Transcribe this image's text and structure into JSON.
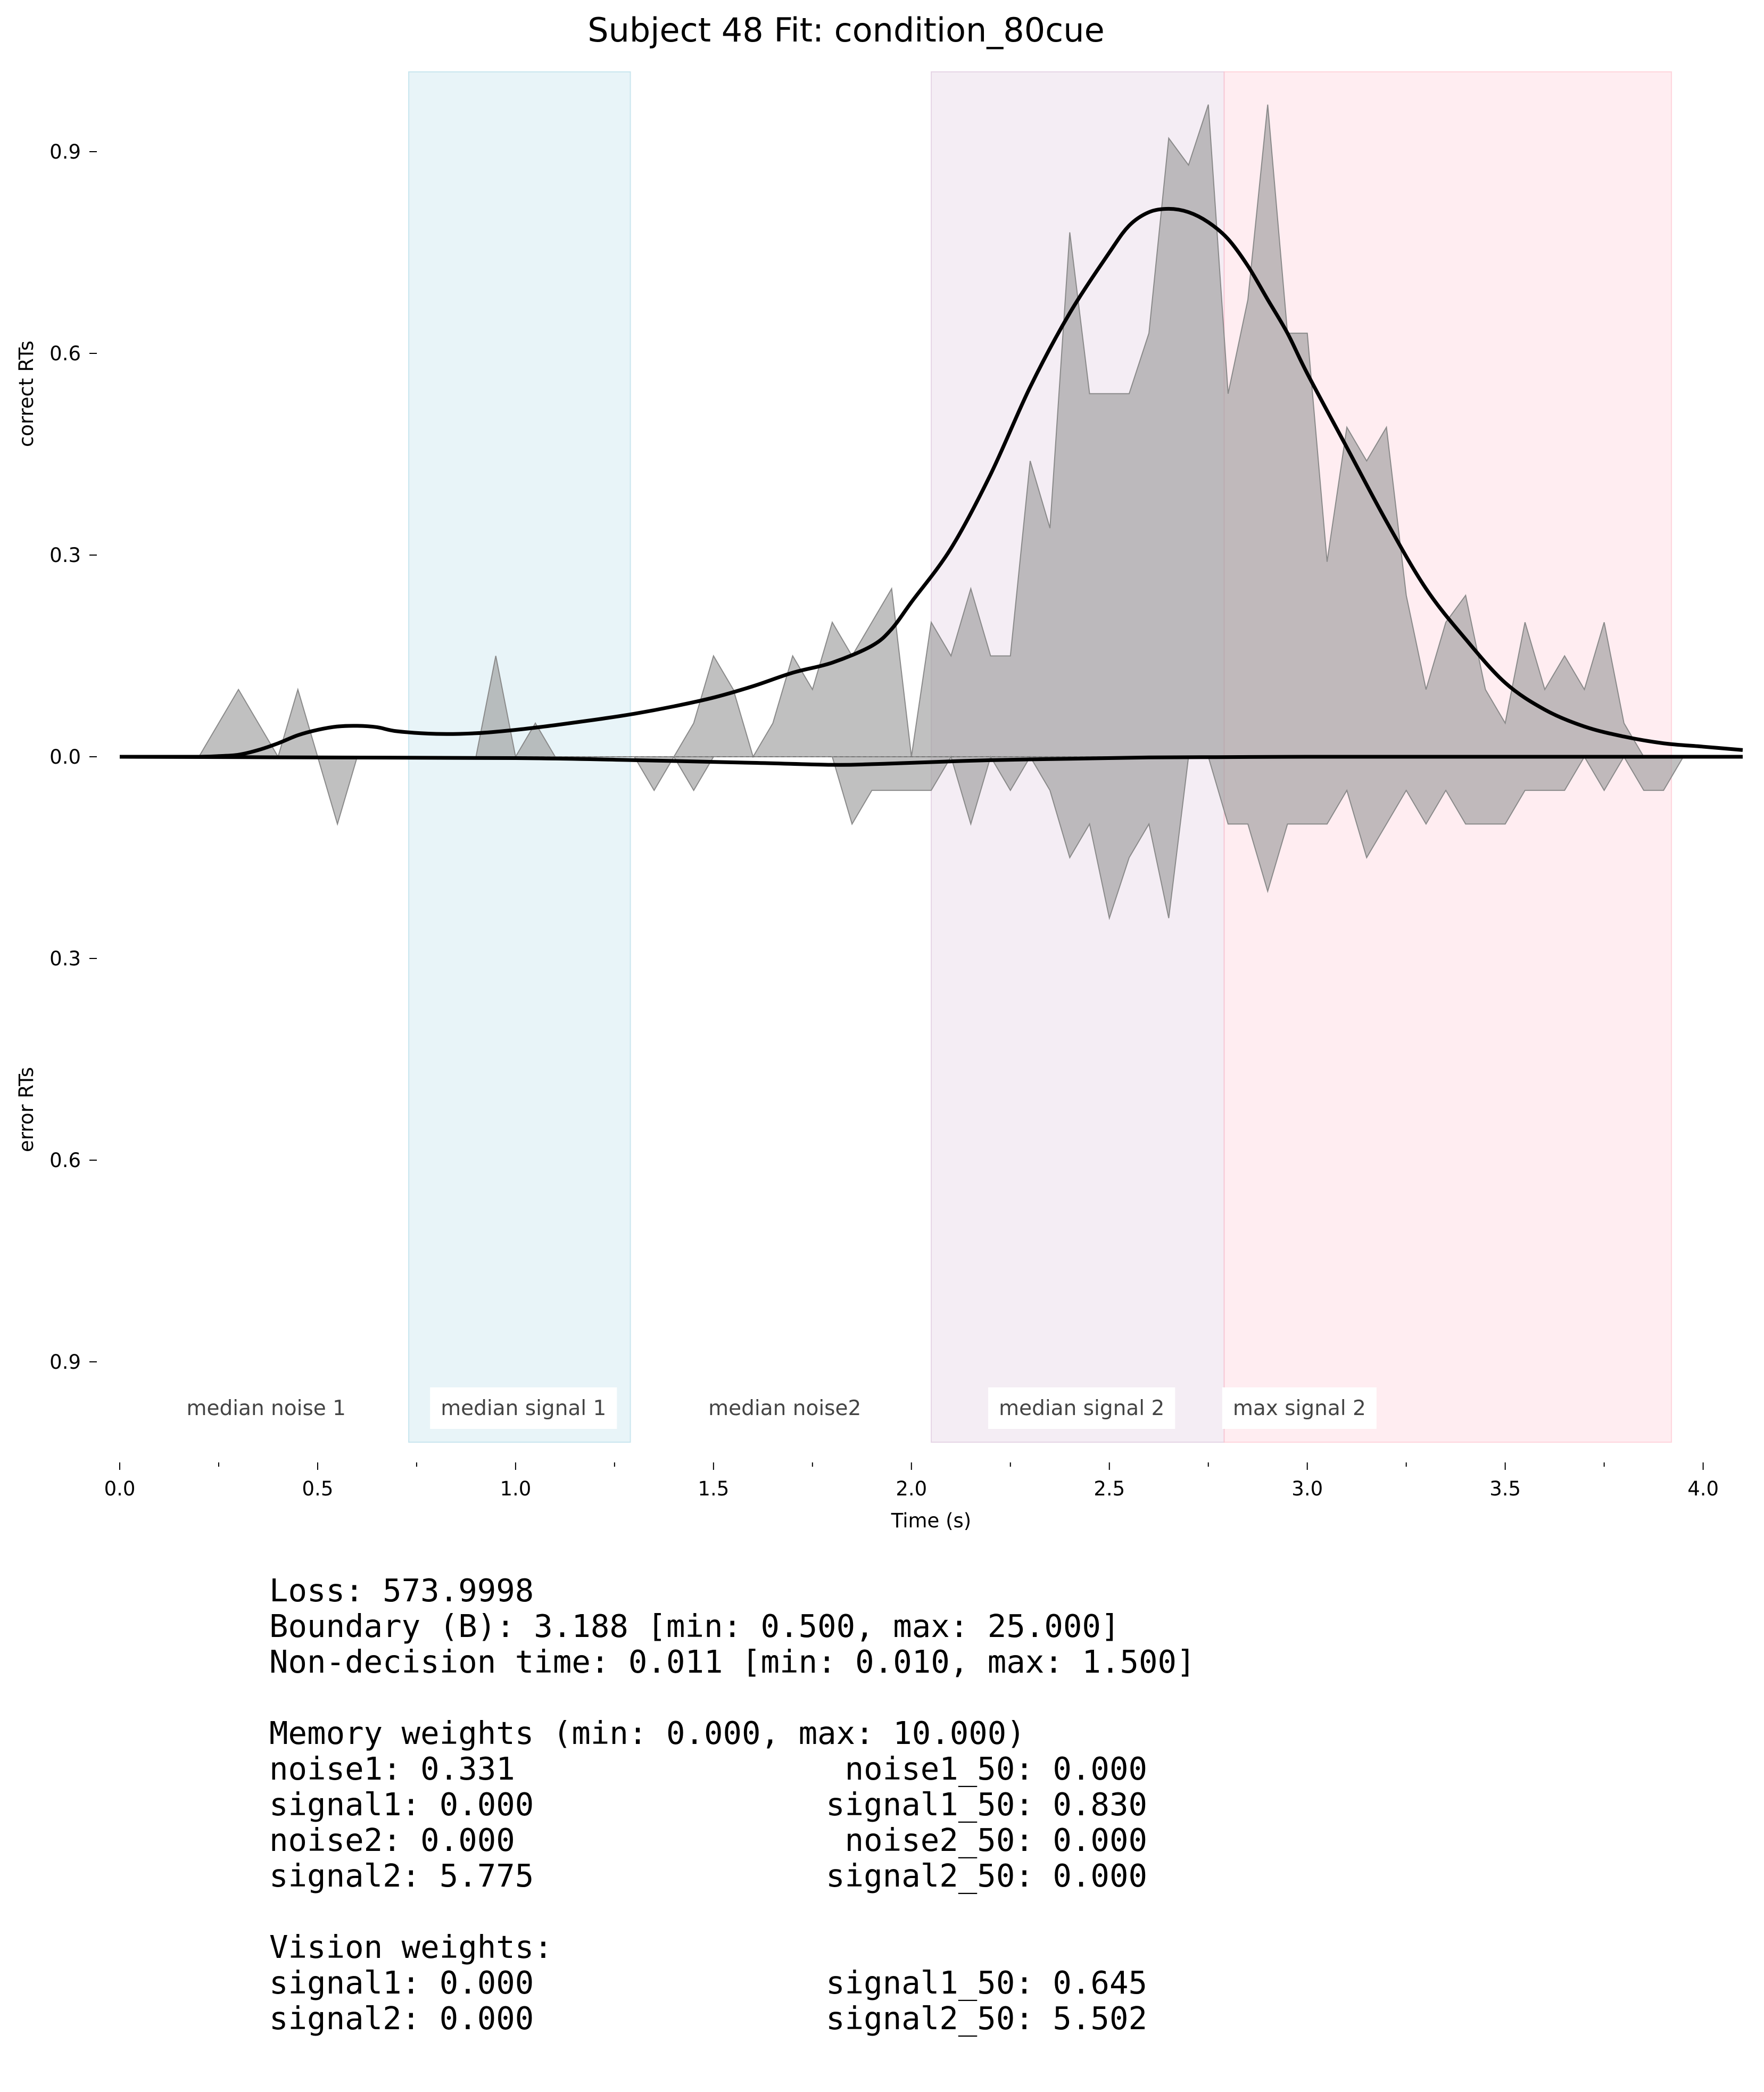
{
  "chart_data": {
    "type": "area",
    "title": "Subject 48 Fit: condition_80cue",
    "xlabel": "Time (s)",
    "ylabel_top": "correct RTs",
    "ylabel_bottom": "error RTs",
    "xlim": [
      0.0,
      4.1
    ],
    "ylim": [
      -1.0,
      1.0
    ],
    "x_ticks": [
      0.0,
      0.5,
      1.0,
      1.5,
      2.0,
      2.5,
      3.0,
      3.5,
      4.0
    ],
    "x_tick_labels": [
      "0.0",
      "0.5",
      "1.0",
      "1.5",
      "2.0",
      "2.5",
      "3.0",
      "3.5",
      "4.0"
    ],
    "y_ticks": [
      0.9,
      0.6,
      0.3,
      0.0,
      -0.3,
      -0.6,
      -0.9
    ],
    "y_tick_labels": [
      "0.9",
      "0.6",
      "0.3",
      "0.0",
      "0.3",
      "0.6",
      "0.9"
    ],
    "grid": false,
    "regions": [
      {
        "label": "median noise 1",
        "x0": null,
        "x1": null,
        "color": "",
        "boxed": false
      },
      {
        "label": "median signal 1",
        "x0": 0.73,
        "x1": 1.29,
        "color": "#add8e6",
        "boxed": true
      },
      {
        "label": "median noise2",
        "x0": null,
        "x1": null,
        "color": "",
        "boxed": false
      },
      {
        "label": "median signal 2",
        "x0": 2.05,
        "x1": 2.79,
        "color": "#d8bfd8",
        "boxed": true
      },
      {
        "label": "max signal 2",
        "x0": 2.79,
        "x1": 3.92,
        "color": "#ffc0cb",
        "boxed": true
      }
    ],
    "region_label_x": [
      0.37,
      1.02,
      1.68,
      2.43,
      2.98
    ],
    "histogram_correct": {
      "x": [
        0.0,
        0.05,
        0.1,
        0.15,
        0.2,
        0.25,
        0.3,
        0.35,
        0.4,
        0.45,
        0.5,
        0.55,
        0.6,
        0.65,
        0.7,
        0.75,
        0.8,
        0.85,
        0.9,
        0.95,
        1.0,
        1.05,
        1.1,
        1.15,
        1.2,
        1.25,
        1.3,
        1.35,
        1.4,
        1.45,
        1.5,
        1.55,
        1.6,
        1.65,
        1.7,
        1.75,
        1.8,
        1.85,
        1.9,
        1.95,
        2.0,
        2.05,
        2.1,
        2.15,
        2.2,
        2.25,
        2.3,
        2.35,
        2.4,
        2.45,
        2.5,
        2.55,
        2.6,
        2.65,
        2.7,
        2.75,
        2.8,
        2.85,
        2.9,
        2.95,
        3.0,
        3.05,
        3.1,
        3.15,
        3.2,
        3.25,
        3.3,
        3.35,
        3.4,
        3.45,
        3.5,
        3.55,
        3.6,
        3.65,
        3.7,
        3.75,
        3.8,
        3.85,
        3.9,
        3.95
      ],
      "y": [
        0.0,
        0.0,
        0.0,
        0.0,
        0.0,
        0.05,
        0.1,
        0.05,
        0.0,
        0.1,
        0.0,
        0.0,
        0.0,
        0.0,
        0.0,
        0.0,
        0.0,
        0.0,
        0.0,
        0.15,
        0.0,
        0.05,
        0.0,
        0.0,
        0.0,
        0.0,
        0.0,
        0.0,
        0.0,
        0.05,
        0.15,
        0.1,
        0.0,
        0.05,
        0.15,
        0.1,
        0.2,
        0.15,
        0.2,
        0.25,
        0.0,
        0.2,
        0.15,
        0.25,
        0.15,
        0.15,
        0.44,
        0.34,
        0.78,
        0.54,
        0.54,
        0.54,
        0.63,
        0.92,
        0.88,
        0.97,
        0.54,
        0.68,
        0.97,
        0.63,
        0.63,
        0.29,
        0.49,
        0.44,
        0.49,
        0.24,
        0.1,
        0.2,
        0.24,
        0.1,
        0.05,
        0.2,
        0.1,
        0.15,
        0.1,
        0.2,
        0.05,
        0.0,
        0.0,
        0.0
      ]
    },
    "histogram_error": {
      "x": [
        0.0,
        0.25,
        0.3,
        0.35,
        0.4,
        0.45,
        0.5,
        0.55,
        0.6,
        0.65,
        1.3,
        1.35,
        1.4,
        1.45,
        1.5,
        1.55,
        1.6,
        1.7,
        1.75,
        1.8,
        1.85,
        1.9,
        1.95,
        2.0,
        2.05,
        2.1,
        2.15,
        2.2,
        2.25,
        2.3,
        2.35,
        2.4,
        2.45,
        2.5,
        2.55,
        2.6,
        2.65,
        2.7,
        2.75,
        2.8,
        2.85,
        2.9,
        2.95,
        3.0,
        3.05,
        3.1,
        3.15,
        3.2,
        3.25,
        3.3,
        3.35,
        3.4,
        3.45,
        3.5,
        3.55,
        3.6,
        3.65,
        3.7,
        3.75,
        3.8,
        3.85,
        3.9,
        3.95
      ],
      "y": [
        0.0,
        0.0,
        0.0,
        0.0,
        0.0,
        0.0,
        0.0,
        -0.1,
        0.0,
        0.0,
        0.0,
        -0.05,
        0.0,
        -0.05,
        0.0,
        0.0,
        0.0,
        0.0,
        0.0,
        0.0,
        -0.1,
        -0.05,
        -0.05,
        -0.05,
        -0.05,
        0.0,
        -0.1,
        0.0,
        -0.05,
        0.0,
        -0.05,
        -0.15,
        -0.1,
        -0.24,
        -0.15,
        -0.1,
        -0.24,
        0.0,
        0.0,
        -0.1,
        -0.1,
        -0.2,
        -0.1,
        -0.1,
        -0.1,
        -0.05,
        -0.15,
        -0.1,
        -0.05,
        -0.1,
        -0.05,
        -0.1,
        -0.1,
        -0.1,
        -0.05,
        -0.05,
        -0.05,
        0.0,
        -0.05,
        0.0,
        -0.05,
        -0.05,
        0.0
      ]
    },
    "fit_correct": {
      "x": [
        0.0,
        0.1,
        0.2,
        0.25,
        0.3,
        0.35,
        0.4,
        0.45,
        0.5,
        0.55,
        0.6,
        0.65,
        0.7,
        0.8,
        0.9,
        1.0,
        1.1,
        1.2,
        1.3,
        1.4,
        1.5,
        1.6,
        1.7,
        1.8,
        1.9,
        1.95,
        2.0,
        2.1,
        2.2,
        2.3,
        2.4,
        2.5,
        2.55,
        2.6,
        2.65,
        2.7,
        2.75,
        2.8,
        2.85,
        2.9,
        2.95,
        3.0,
        3.1,
        3.2,
        3.3,
        3.4,
        3.5,
        3.6,
        3.7,
        3.8,
        3.9,
        4.0,
        4.1
      ],
      "y": [
        0.0,
        0.0,
        0.0,
        0.001,
        0.003,
        0.01,
        0.02,
        0.032,
        0.04,
        0.045,
        0.046,
        0.044,
        0.038,
        0.034,
        0.035,
        0.04,
        0.047,
        0.055,
        0.064,
        0.075,
        0.088,
        0.105,
        0.125,
        0.14,
        0.165,
        0.19,
        0.23,
        0.31,
        0.42,
        0.55,
        0.66,
        0.75,
        0.79,
        0.81,
        0.815,
        0.81,
        0.795,
        0.77,
        0.73,
        0.68,
        0.63,
        0.57,
        0.46,
        0.35,
        0.25,
        0.175,
        0.11,
        0.07,
        0.045,
        0.03,
        0.02,
        0.015,
        0.01
      ]
    },
    "fit_error": {
      "x": [
        0.0,
        0.5,
        1.0,
        1.3,
        1.6,
        1.8,
        1.9,
        2.0,
        2.2,
        2.4,
        2.6,
        2.8,
        3.0,
        3.5,
        4.0,
        4.1
      ],
      "y": [
        0.0,
        -0.001,
        -0.002,
        -0.005,
        -0.009,
        -0.012,
        -0.011,
        -0.009,
        -0.005,
        -0.003,
        -0.001,
        -0.0005,
        0.0,
        0.0,
        0.0,
        0.0
      ]
    },
    "histogram_color": "#999999",
    "fit_color": "#000000"
  },
  "stats": {
    "loss": "Loss: 573.9998",
    "boundary": "Boundary (B): 3.188 [min: 0.500, max: 25.000]",
    "non_decision": "Non-decision time: 0.011 [min: 0.010, max: 1.500]",
    "memory_header": "Memory weights (min: 0.000, max: 10.000)",
    "memory_rows": [
      {
        "left": "noise1: 0.331",
        "right": "noise1_50: 0.000"
      },
      {
        "left": "signal1: 0.000",
        "right": "signal1_50: 0.830"
      },
      {
        "left": "noise2: 0.000",
        "right": "noise2_50: 0.000"
      },
      {
        "left": "signal2: 5.775",
        "right": "signal2_50: 0.000"
      }
    ],
    "vision_header": "Vision weights:",
    "vision_rows": [
      {
        "left": "signal1: 0.000",
        "right": "signal1_50: 0.645"
      },
      {
        "left": "signal2: 0.000",
        "right": "signal2_50: 5.502"
      }
    ]
  }
}
